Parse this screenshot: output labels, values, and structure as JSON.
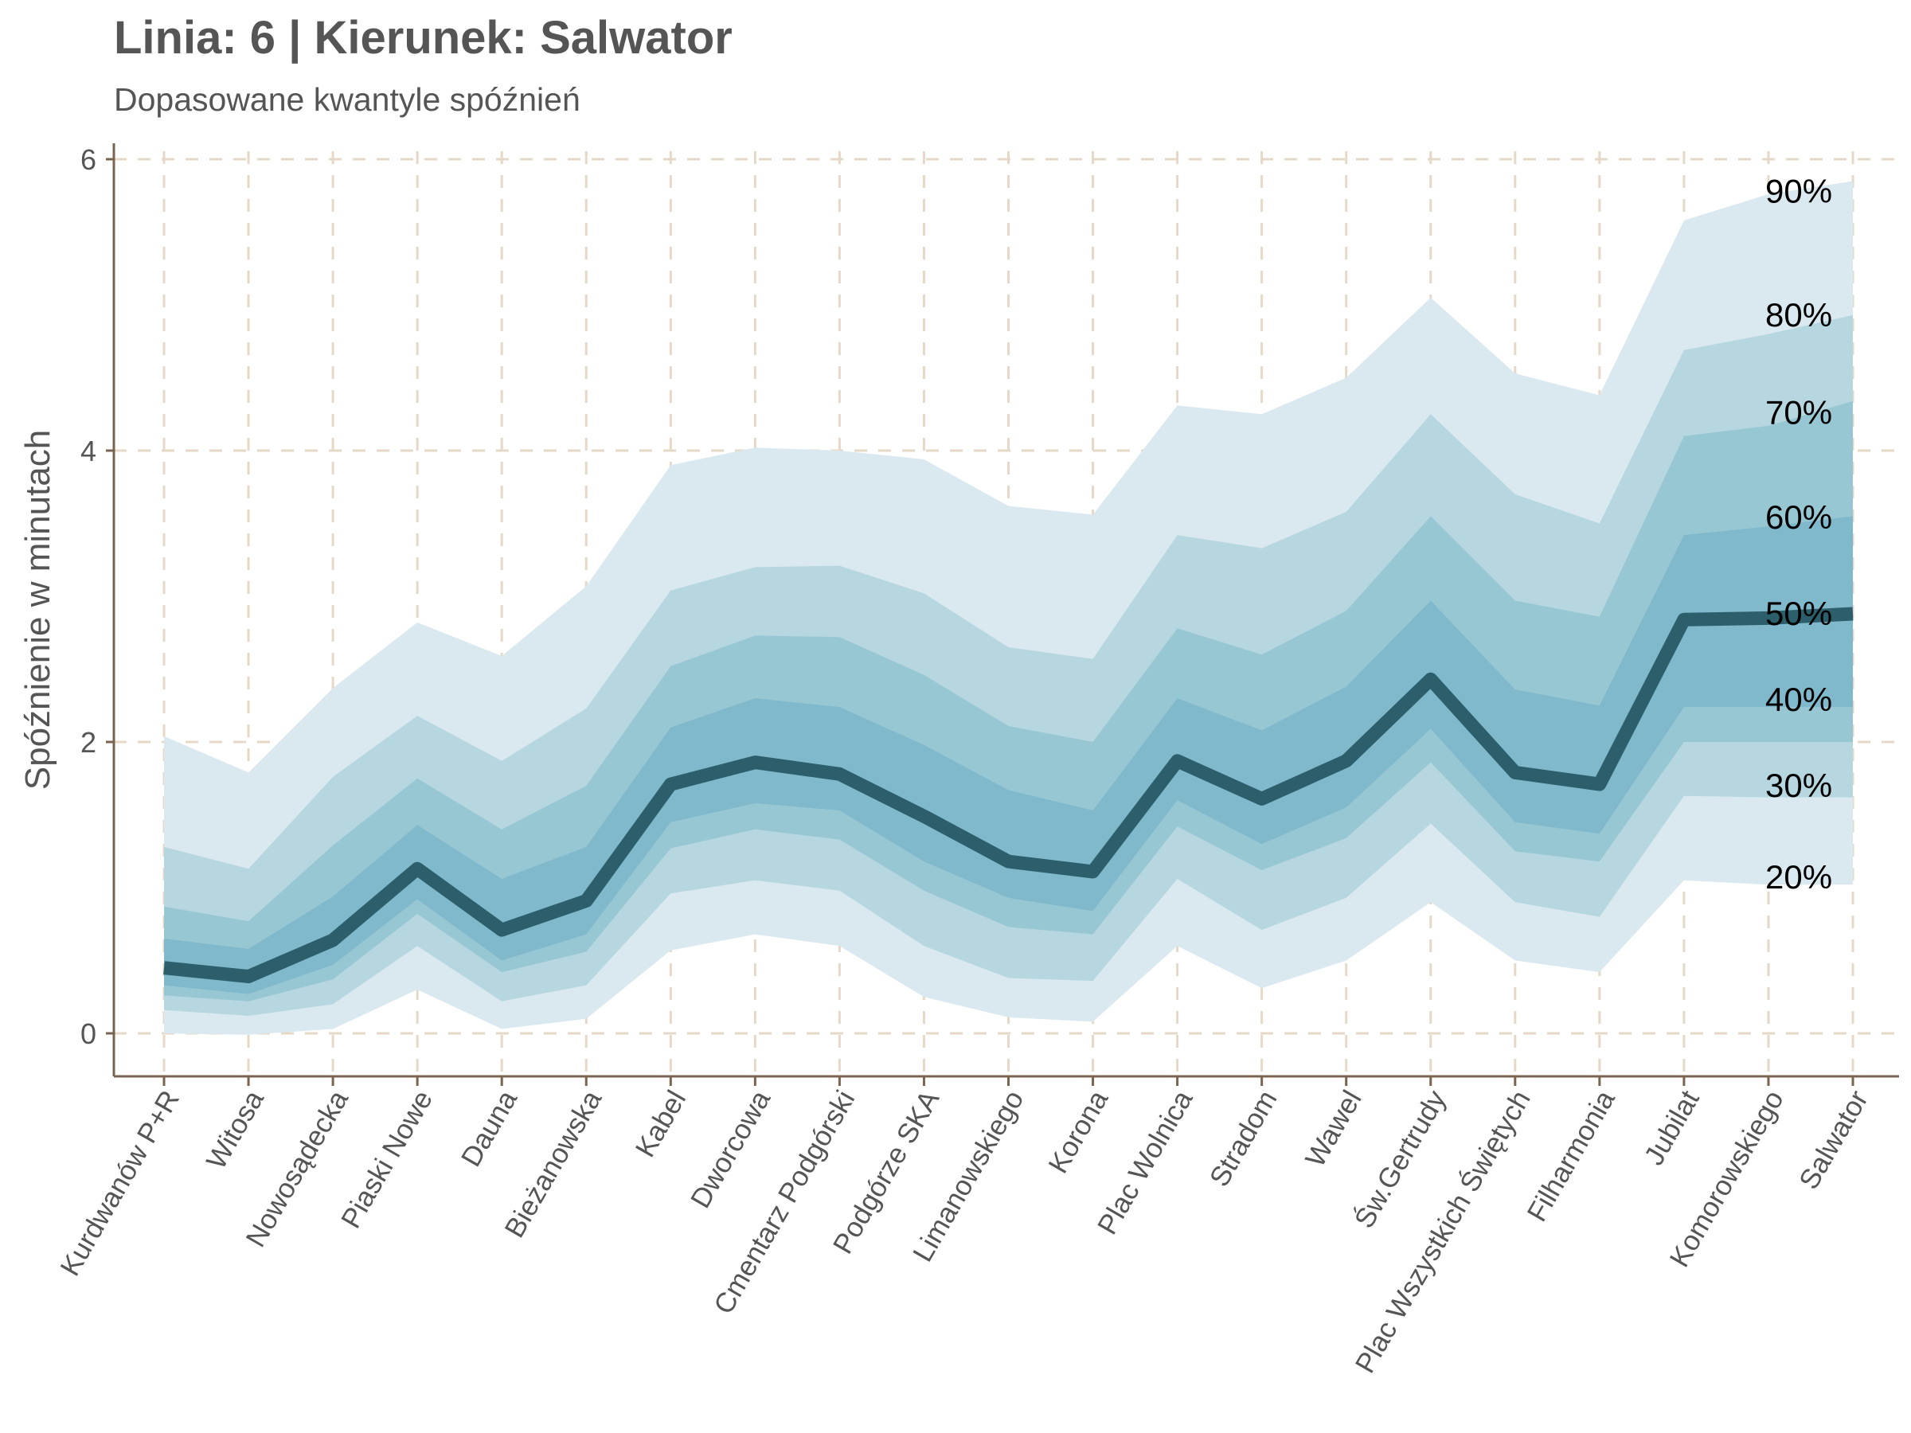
{
  "chart_data": {
    "type": "area",
    "title": "Linia: 6 | Kierunek: Salwator",
    "subtitle": "Dopasowane kwantyle spóźnień",
    "xlabel": "",
    "ylabel": "Spóźnienie w minutach",
    "ylim": [
      -0.3,
      6.1
    ],
    "yticks": [
      0,
      2,
      4,
      6
    ],
    "grid": true,
    "categories": [
      "Kurdwanów P+R",
      "Witosa",
      "Nowosądecka",
      "Piaski Nowe",
      "Dauna",
      "Bieżanowska",
      "Kabel",
      "Dworcowa",
      "Cmentarz Podgórski",
      "Podgórze SKA",
      "Limanowskiego",
      "Korona",
      "Plac Wolnica",
      "Stradom",
      "Wawel",
      "Św.Gertrudy",
      "Plac Wszystkich Świętych",
      "Filharmonia",
      "Jubilat",
      "Komorowskiego",
      "Salwator"
    ],
    "bands": [
      {
        "name": "90%",
        "lower": [
          0.0,
          -0.01,
          0.03,
          0.3,
          0.03,
          0.1,
          0.57,
          0.68,
          0.6,
          0.25,
          0.11,
          0.08,
          0.6,
          0.31,
          0.5,
          0.9,
          0.5,
          0.42,
          1.05,
          1.02,
          1.02
        ],
        "upper": [
          2.04,
          1.79,
          2.37,
          2.82,
          2.59,
          3.07,
          3.9,
          4.02,
          4.0,
          3.94,
          3.62,
          3.56,
          4.31,
          4.25,
          4.5,
          5.05,
          4.53,
          4.38,
          5.58,
          5.76,
          5.85
        ]
      },
      {
        "name": "80%",
        "lower": [
          0.16,
          0.12,
          0.2,
          0.6,
          0.22,
          0.33,
          0.96,
          1.05,
          0.98,
          0.6,
          0.38,
          0.36,
          1.06,
          0.71,
          0.93,
          1.44,
          0.9,
          0.8,
          1.63,
          1.62,
          1.62
        ],
        "upper": [
          1.28,
          1.13,
          1.76,
          2.18,
          1.87,
          2.23,
          3.04,
          3.2,
          3.21,
          3.02,
          2.65,
          2.57,
          3.42,
          3.33,
          3.58,
          4.25,
          3.7,
          3.5,
          4.69,
          4.8,
          4.93
        ]
      },
      {
        "name": "70%",
        "lower": [
          0.26,
          0.22,
          0.37,
          0.82,
          0.42,
          0.56,
          1.27,
          1.4,
          1.33,
          0.98,
          0.73,
          0.68,
          1.42,
          1.12,
          1.34,
          1.86,
          1.25,
          1.18,
          2.0,
          2.0,
          2.0
        ],
        "upper": [
          0.87,
          0.77,
          1.29,
          1.75,
          1.4,
          1.7,
          2.52,
          2.73,
          2.72,
          2.46,
          2.11,
          2.0,
          2.78,
          2.6,
          2.9,
          3.55,
          2.97,
          2.86,
          4.1,
          4.17,
          4.34
        ]
      },
      {
        "name": "60%",
        "lower": [
          0.33,
          0.27,
          0.47,
          0.92,
          0.5,
          0.68,
          1.45,
          1.58,
          1.53,
          1.18,
          0.93,
          0.84,
          1.6,
          1.3,
          1.55,
          2.09,
          1.45,
          1.37,
          2.24,
          2.24,
          2.24
        ],
        "upper": [
          0.65,
          0.58,
          0.94,
          1.43,
          1.06,
          1.28,
          2.1,
          2.3,
          2.24,
          1.98,
          1.67,
          1.53,
          2.3,
          2.08,
          2.38,
          2.97,
          2.36,
          2.25,
          3.42,
          3.48,
          3.55
        ]
      }
    ],
    "series": [
      {
        "name": "50%",
        "values": [
          0.45,
          0.39,
          0.64,
          1.13,
          0.71,
          0.91,
          1.71,
          1.86,
          1.78,
          1.49,
          1.18,
          1.11,
          1.87,
          1.61,
          1.87,
          2.43,
          1.79,
          1.71,
          2.84,
          2.85,
          2.88
        ]
      }
    ],
    "band_labels": [
      {
        "text": "90%",
        "y": 5.78
      },
      {
        "text": "80%",
        "y": 4.93
      },
      {
        "text": "70%",
        "y": 4.26
      },
      {
        "text": "60%",
        "y": 3.54
      },
      {
        "text": "50%",
        "y": 2.88
      },
      {
        "text": "40%",
        "y": 2.29
      },
      {
        "text": "30%",
        "y": 1.7
      },
      {
        "text": "20%",
        "y": 1.07
      }
    ],
    "colors": {
      "band_90": "#dae9ef",
      "band_80": "#b6d7e0",
      "band_70": "#98c7d4",
      "band_60": "#7fb9cb",
      "median_line": "#2c5f6b",
      "grid": "#e6d8c6",
      "axis": "#7a6450",
      "text": "#555555"
    }
  }
}
